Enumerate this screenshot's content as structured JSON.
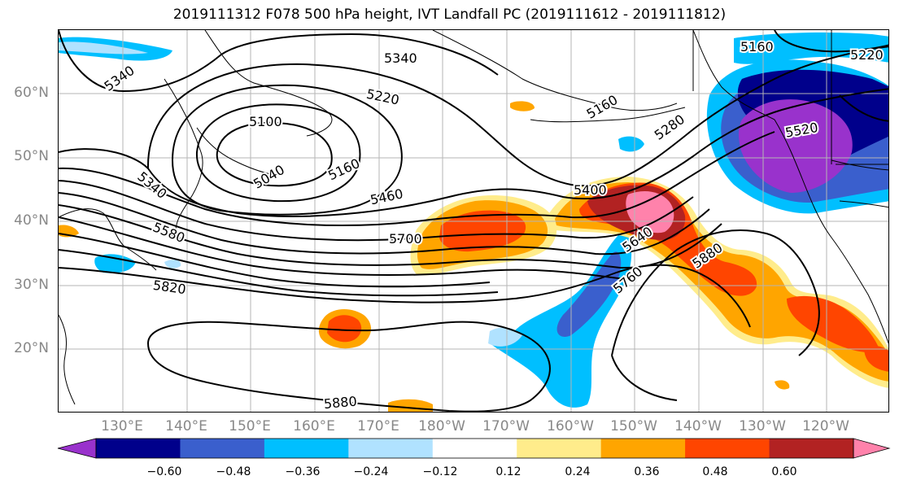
{
  "title": "2019111312 F078 500 hPa height, IVT Landfall PC (2019111612 - 2019111812)",
  "lat_labels": [
    "60°N",
    "50°N",
    "40°N",
    "30°N",
    "20°N"
  ],
  "lon_labels": [
    "130°E",
    "140°E",
    "150°E",
    "160°E",
    "170°E",
    "180°W",
    "170°W",
    "160°W",
    "150°W",
    "140°W",
    "130°W",
    "120°W"
  ],
  "contour_labels": [
    "5340",
    "5340",
    "5220",
    "5100",
    "5040",
    "5160",
    "5340",
    "5460",
    "5580",
    "5820",
    "5700",
    "5400",
    "5640",
    "5760",
    "5880",
    "5880",
    "5280",
    "5160",
    "5160",
    "5220",
    "5520"
  ],
  "colorbar": {
    "ticks": [
      "−0.60",
      "−0.48",
      "−0.36",
      "−0.24",
      "−0.12",
      "0.12",
      "0.24",
      "0.36",
      "0.48",
      "0.60"
    ],
    "colors": [
      "#9932cc",
      "#00008b",
      "#3a5fcd",
      "#00bfff",
      "#b0e2ff",
      "#ffffff",
      "#ffec8b",
      "#ffa500",
      "#ff4500",
      "#b22222",
      "#ff82ab"
    ]
  }
}
